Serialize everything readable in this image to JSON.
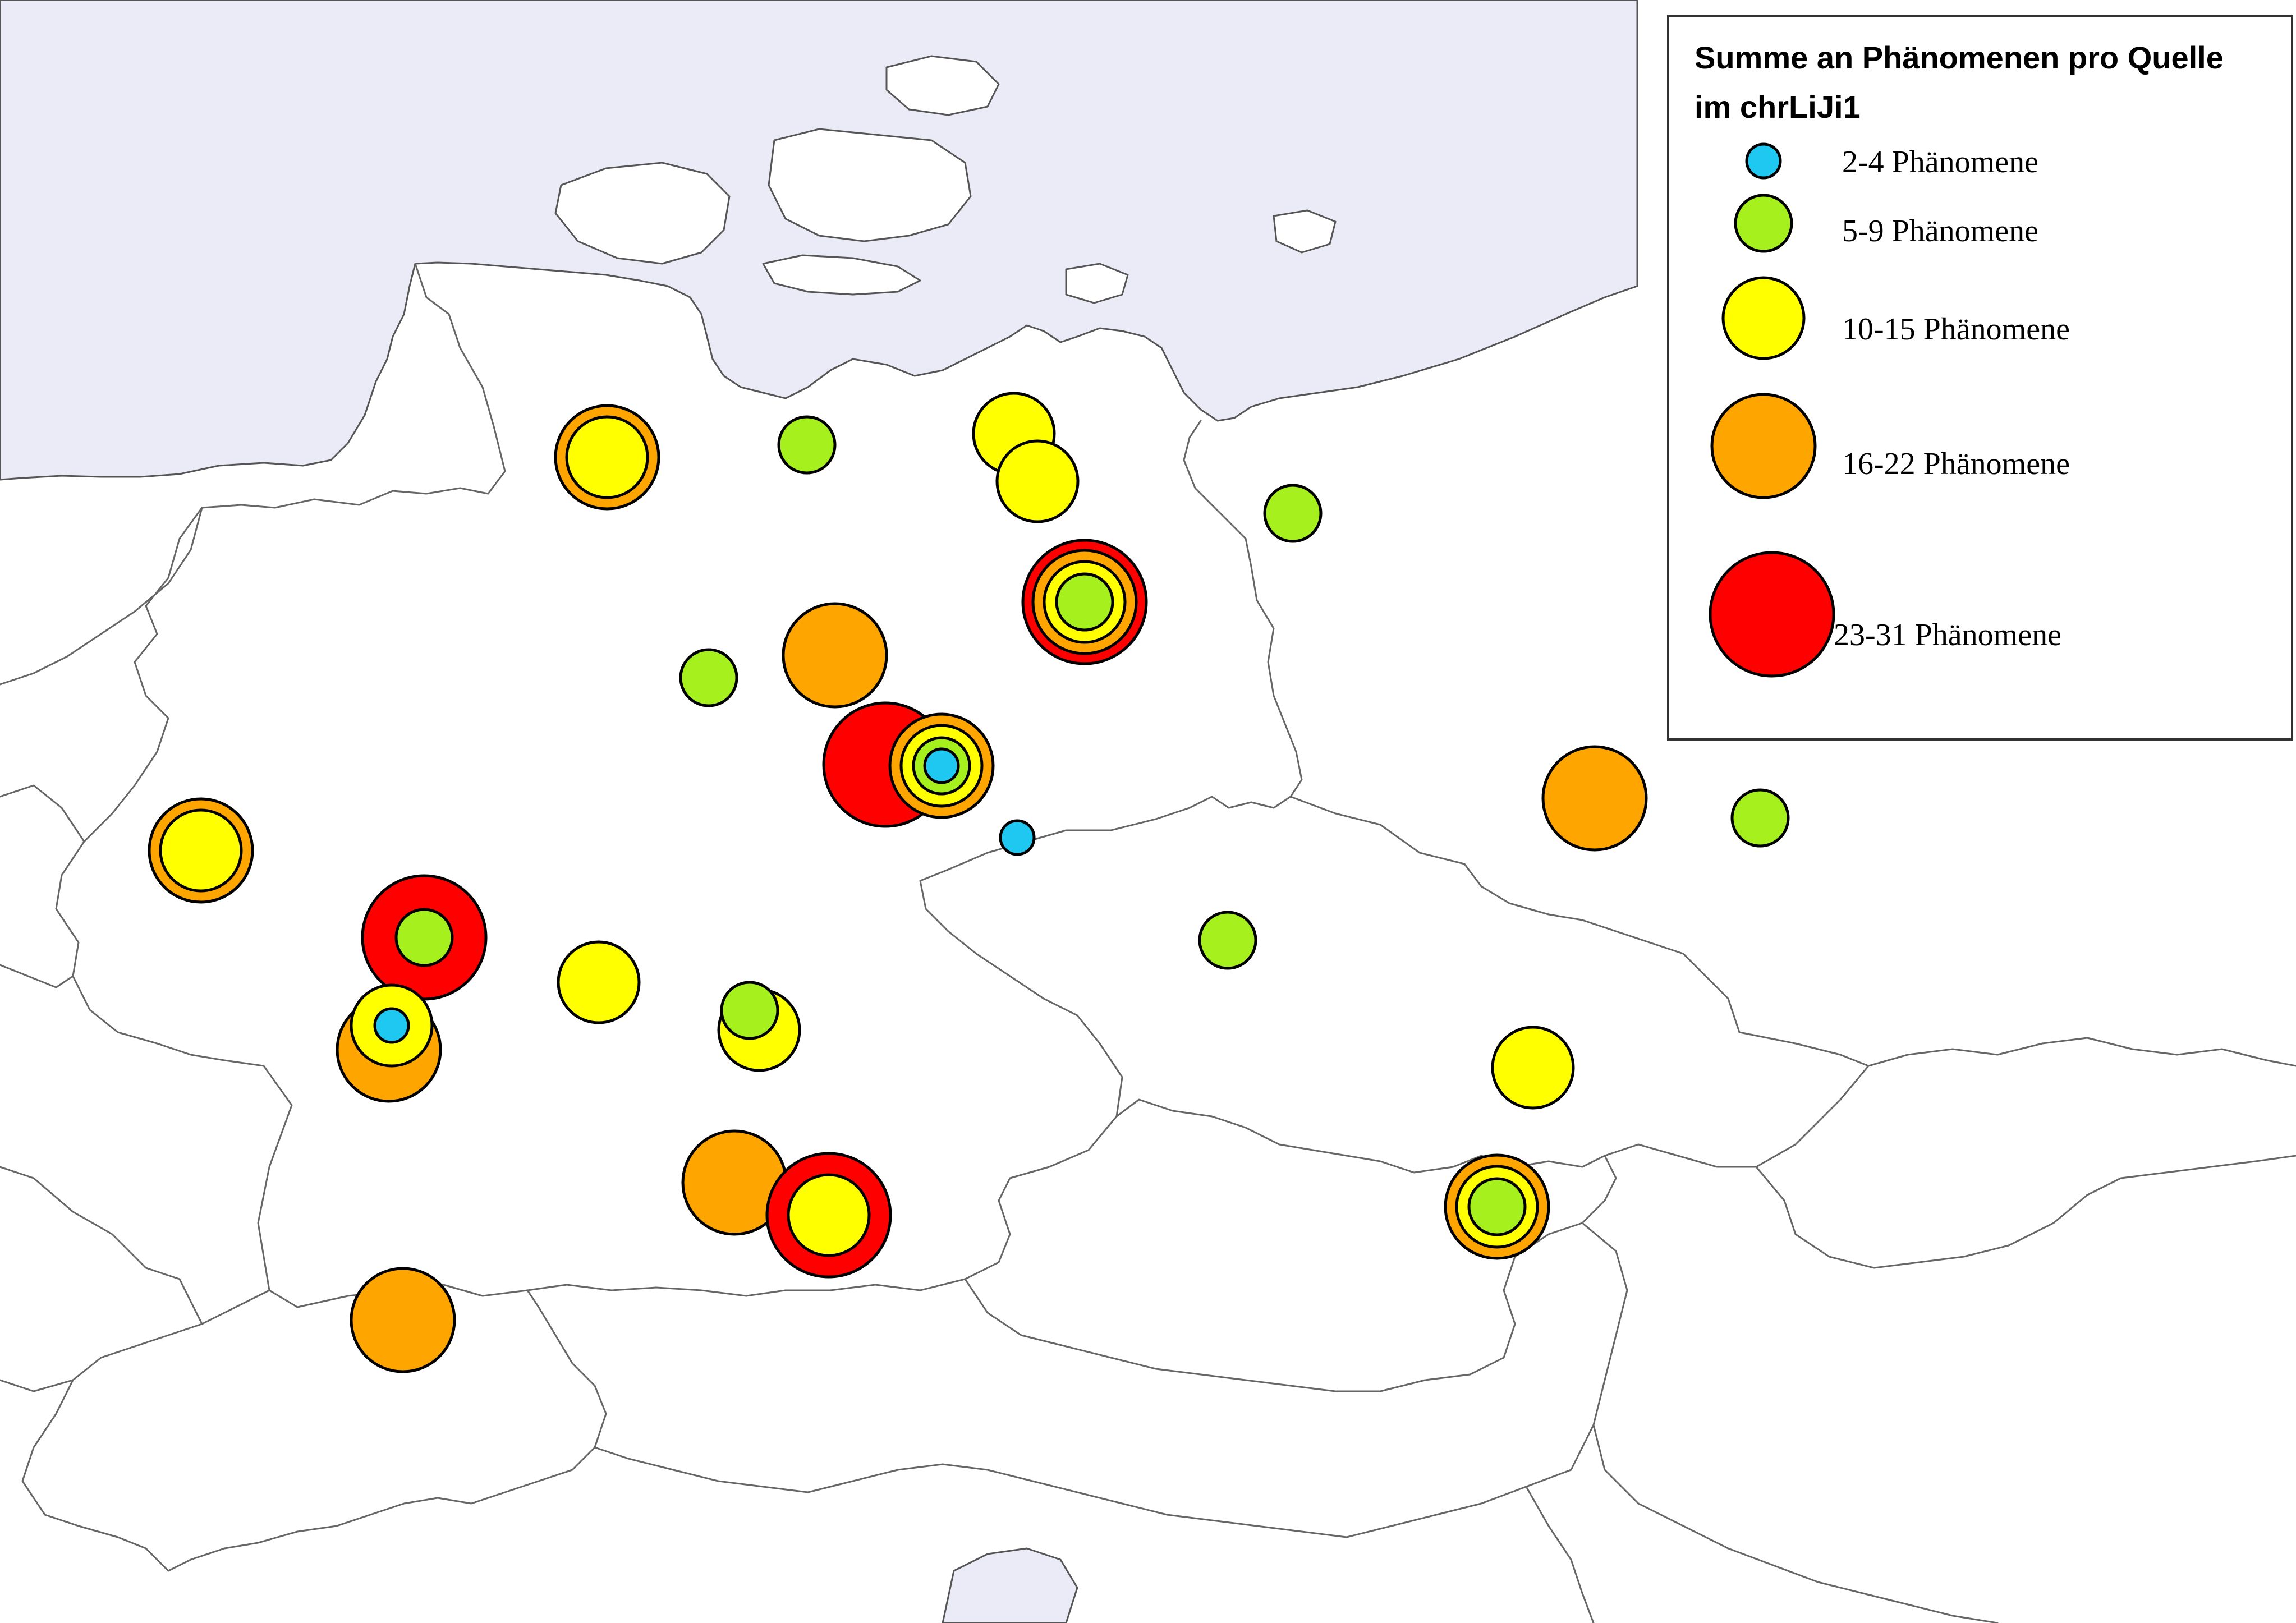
{
  "legend": {
    "title_line1": "Summe an Phänomenen pro Quelle",
    "title_line2": "im chrLiJi1",
    "classes": [
      {
        "key": "c1",
        "label": "2-4 Phänomene",
        "color": "#1ec8f0"
      },
      {
        "key": "c2",
        "label": "5-9 Phänomene",
        "color": "#a6f01e"
      },
      {
        "key": "c3",
        "label": "10-15 Phänomene",
        "color": "#ffff00"
      },
      {
        "key": "c4",
        "label": "16-22 Phänomene",
        "color": "#ffa500"
      },
      {
        "key": "c5",
        "label": "23-31 Phänomene",
        "color": "#ff0000"
      }
    ]
  }
}
